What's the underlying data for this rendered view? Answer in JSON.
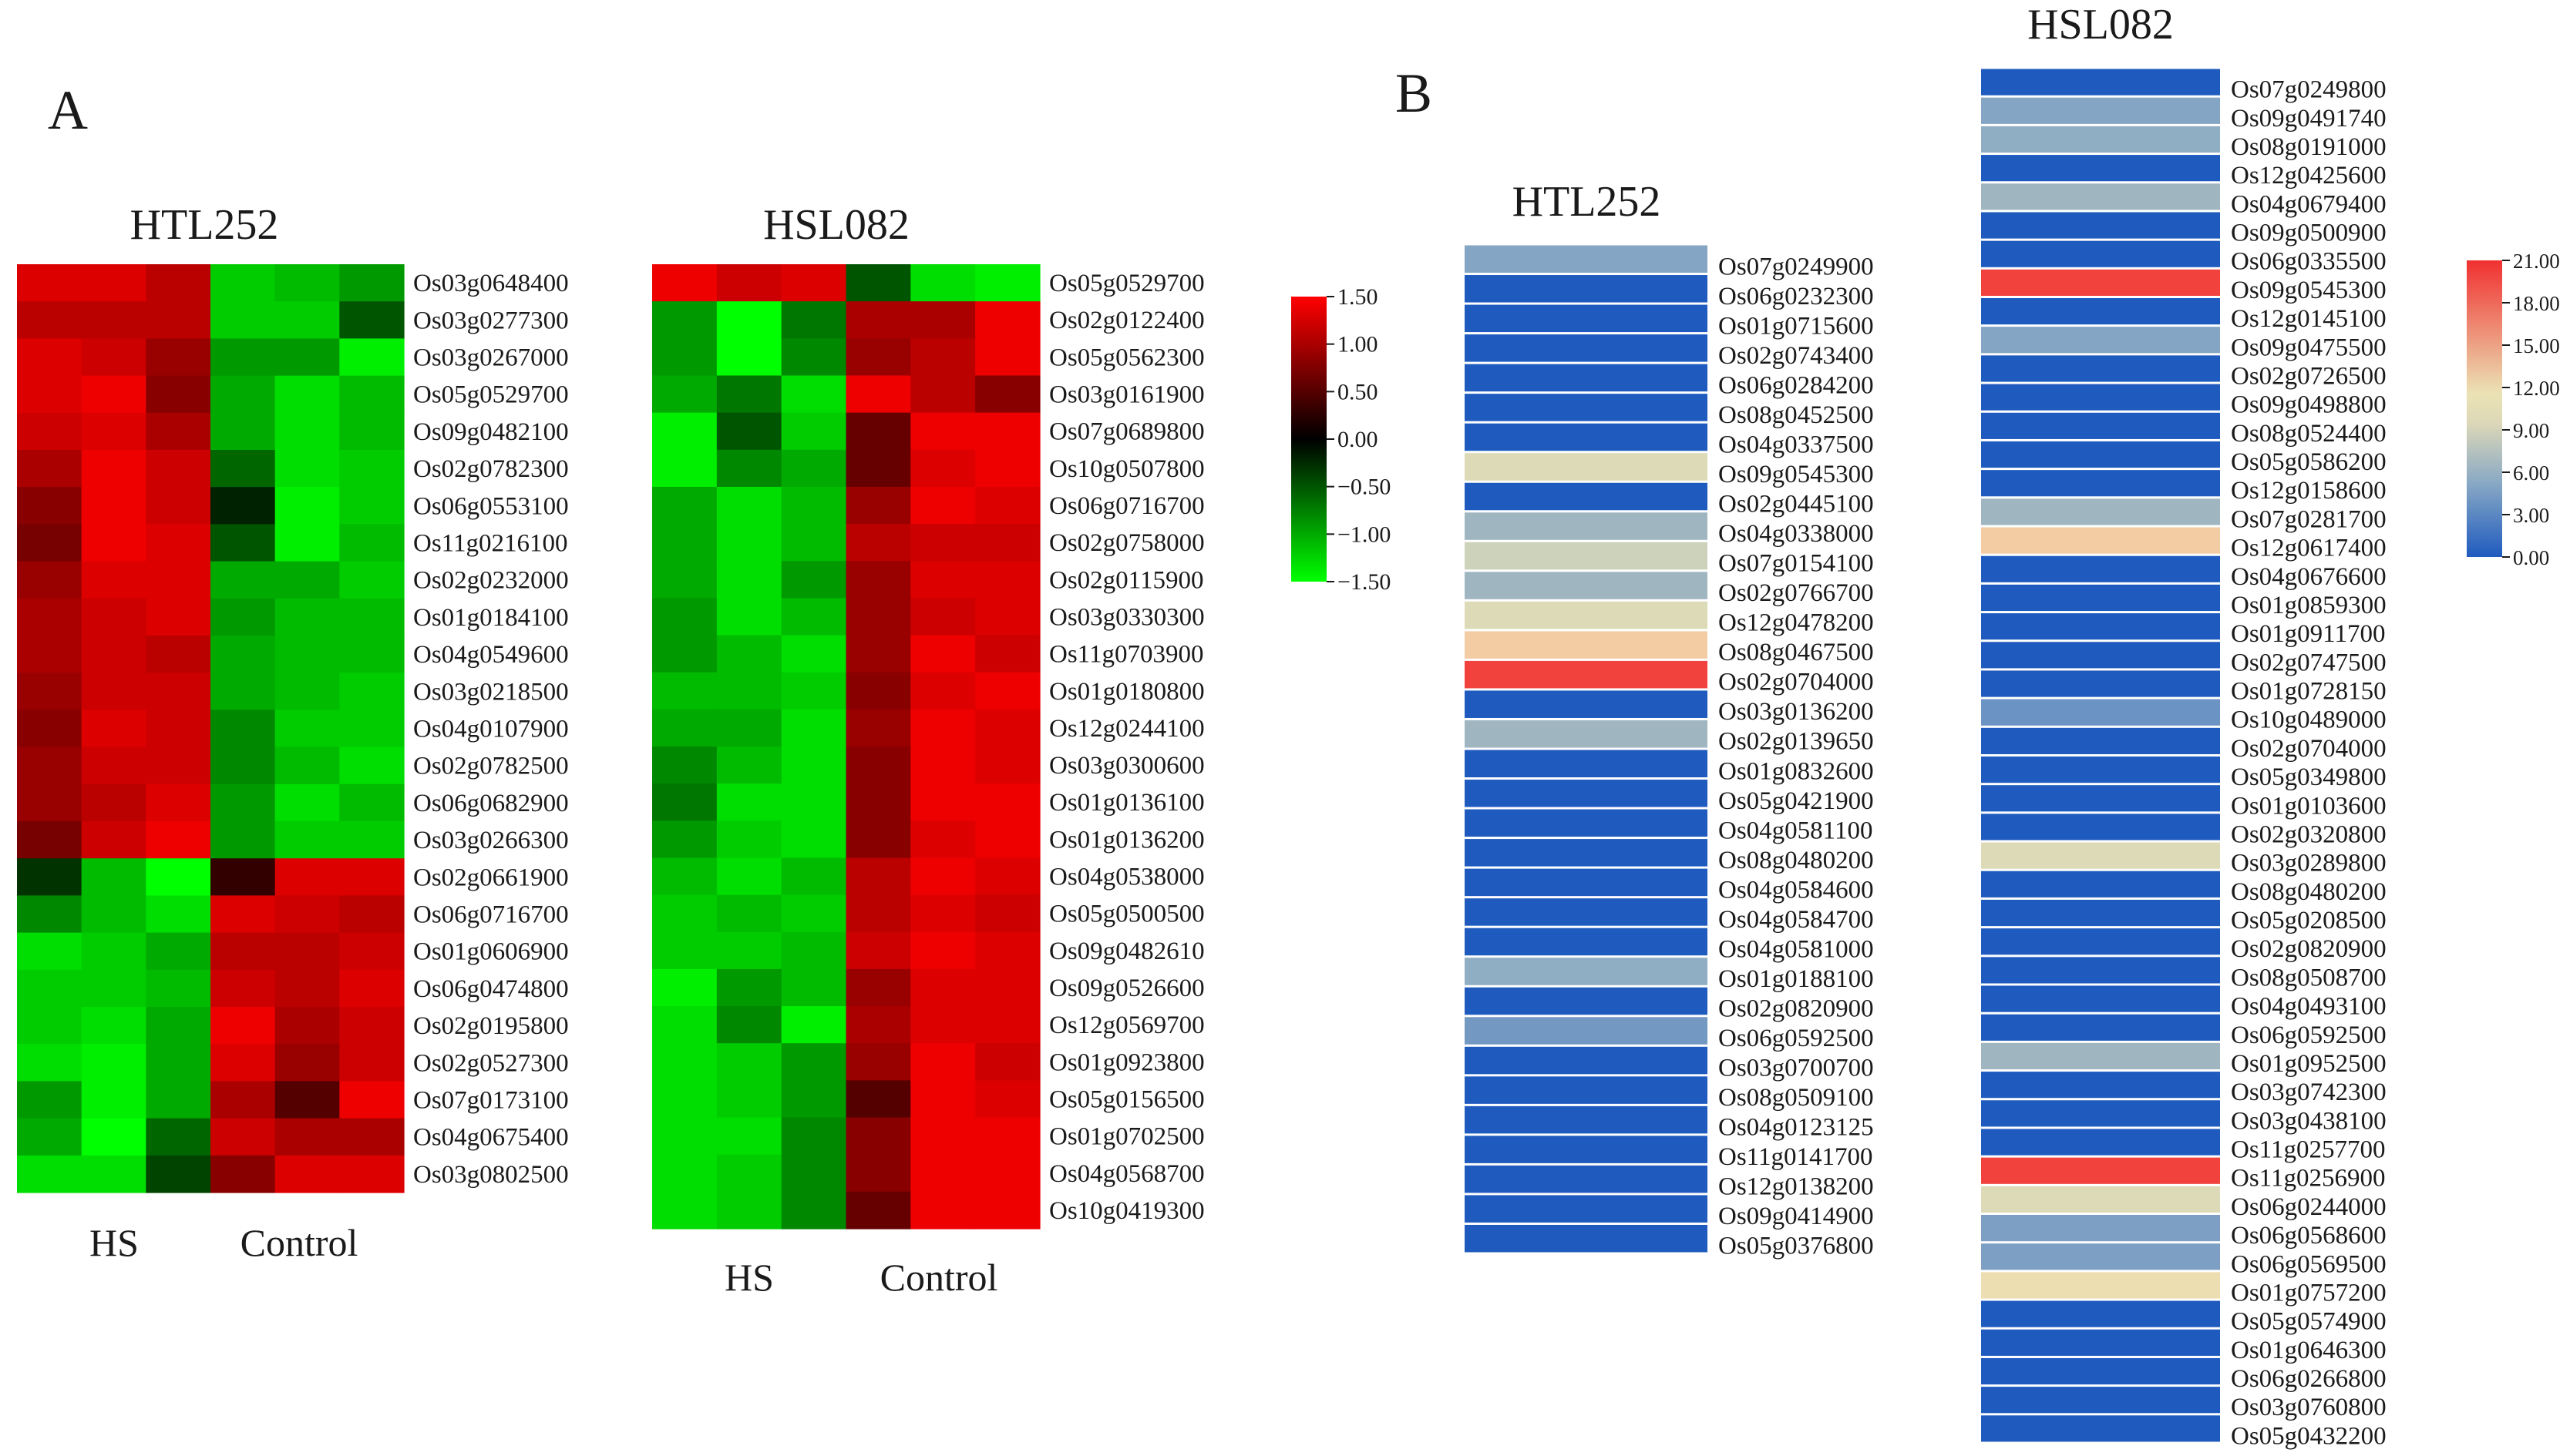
{
  "chart_data": [
    {
      "type": "heatmap",
      "panel": "A",
      "title": "HTL252",
      "rows": [
        "Os03g0648400",
        "Os03g0277300",
        "Os03g0267000",
        "Os05g0529700",
        "Os09g0482100",
        "Os02g0782300",
        "Os06g0553100",
        "Os11g0216100",
        "Os02g0232000",
        "Os01g0184100",
        "Os04g0549600",
        "Os03g0218500",
        "Os04g0107900",
        "Os02g0782500",
        "Os06g0682900",
        "Os03g0266300",
        "Os02g0661900",
        "Os06g0716700",
        "Os01g0606900",
        "Os06g0474800",
        "Os02g0195800",
        "Os02g0527300",
        "Os07g0173100",
        "Os04g0675400",
        "Os03g0802500"
      ],
      "column_groups": [
        "HS",
        "Control"
      ],
      "values": [
        [
          1.3,
          1.3,
          1.1,
          -1.2,
          -1.1,
          -0.9
        ],
        [
          1.1,
          1.1,
          1.1,
          -1.2,
          -1.2,
          -0.5
        ],
        [
          1.3,
          1.2,
          0.9,
          -0.9,
          -0.9,
          -1.4
        ],
        [
          1.3,
          1.4,
          0.8,
          -1.0,
          -1.3,
          -1.1
        ],
        [
          1.2,
          1.3,
          1.0,
          -1.0,
          -1.3,
          -1.1
        ],
        [
          1.0,
          1.4,
          1.2,
          -0.6,
          -1.3,
          -1.2
        ],
        [
          0.8,
          1.4,
          1.2,
          -0.2,
          -1.4,
          -1.2
        ],
        [
          0.7,
          1.4,
          1.3,
          -0.5,
          -1.4,
          -1.1
        ],
        [
          0.9,
          1.3,
          1.3,
          -1.0,
          -1.0,
          -1.2
        ],
        [
          1.0,
          1.2,
          1.3,
          -0.9,
          -1.1,
          -1.1
        ],
        [
          1.0,
          1.2,
          1.1,
          -1.0,
          -1.1,
          -1.1
        ],
        [
          0.9,
          1.2,
          1.2,
          -1.0,
          -1.1,
          -1.2
        ],
        [
          0.8,
          1.3,
          1.2,
          -0.8,
          -1.2,
          -1.2
        ],
        [
          0.9,
          1.2,
          1.2,
          -0.8,
          -1.1,
          -1.3
        ],
        [
          0.9,
          1.1,
          1.3,
          -0.9,
          -1.3,
          -1.1
        ],
        [
          0.7,
          1.2,
          1.4,
          -0.9,
          -1.2,
          -1.2
        ],
        [
          -0.3,
          -1.1,
          -1.5,
          0.3,
          1.3,
          1.3
        ],
        [
          -0.8,
          -1.1,
          -1.3,
          1.3,
          1.2,
          1.1
        ],
        [
          -1.3,
          -1.2,
          -1.0,
          1.1,
          1.1,
          1.2
        ],
        [
          -1.2,
          -1.2,
          -1.1,
          1.2,
          1.1,
          1.3
        ],
        [
          -1.2,
          -1.3,
          -1.0,
          1.4,
          1.0,
          1.2
        ],
        [
          -1.3,
          -1.4,
          -1.0,
          1.3,
          0.9,
          1.2
        ],
        [
          -0.9,
          -1.4,
          -1.0,
          1.0,
          0.5,
          1.4
        ],
        [
          -1.0,
          -1.5,
          -0.6,
          1.2,
          1.0,
          1.0
        ],
        [
          -1.3,
          -1.3,
          -0.4,
          0.8,
          1.3,
          1.3
        ]
      ]
    },
    {
      "type": "heatmap",
      "panel": "A",
      "title": "HSL082",
      "rows": [
        "Os05g0529700",
        "Os02g0122400",
        "Os05g0562300",
        "Os03g0161900",
        "Os07g0689800",
        "Os10g0507800",
        "Os06g0716700",
        "Os02g0758000",
        "Os02g0115900",
        "Os03g0330300",
        "Os11g0703900",
        "Os01g0180800",
        "Os12g0244100",
        "Os03g0300600",
        "Os01g0136100",
        "Os01g0136200",
        "Os04g0538000",
        "Os05g0500500",
        "Os09g0482610",
        "Os09g0526600",
        "Os12g0569700",
        "Os01g0923800",
        "Os05g0156500",
        "Os01g0702500",
        "Os04g0568700",
        "Os10g0419300"
      ],
      "column_groups": [
        "HS",
        "Control"
      ],
      "values": [
        [
          1.4,
          1.2,
          1.3,
          -0.5,
          -1.3,
          -1.4
        ],
        [
          -0.9,
          -1.5,
          -0.7,
          1.0,
          1.0,
          1.4
        ],
        [
          -0.9,
          -1.5,
          -0.8,
          0.9,
          1.1,
          1.4
        ],
        [
          -1.0,
          -0.7,
          -1.3,
          1.4,
          1.1,
          0.8
        ],
        [
          -1.4,
          -0.5,
          -1.2,
          0.6,
          1.4,
          1.4
        ],
        [
          -1.4,
          -0.8,
          -1.0,
          0.6,
          1.3,
          1.4
        ],
        [
          -1.0,
          -1.3,
          -1.1,
          0.9,
          1.4,
          1.3
        ],
        [
          -1.0,
          -1.3,
          -1.1,
          1.1,
          1.2,
          1.2
        ],
        [
          -1.0,
          -1.3,
          -0.9,
          0.9,
          1.3,
          1.3
        ],
        [
          -0.9,
          -1.3,
          -1.1,
          0.9,
          1.2,
          1.3
        ],
        [
          -0.9,
          -1.1,
          -1.3,
          0.9,
          1.4,
          1.2
        ],
        [
          -1.1,
          -1.1,
          -1.2,
          0.8,
          1.3,
          1.4
        ],
        [
          -1.0,
          -1.0,
          -1.3,
          0.9,
          1.4,
          1.3
        ],
        [
          -0.8,
          -1.1,
          -1.3,
          0.8,
          1.4,
          1.3
        ],
        [
          -0.7,
          -1.3,
          -1.3,
          0.8,
          1.4,
          1.4
        ],
        [
          -0.9,
          -1.2,
          -1.3,
          0.8,
          1.3,
          1.4
        ],
        [
          -1.1,
          -1.3,
          -1.1,
          1.1,
          1.4,
          1.3
        ],
        [
          -1.2,
          -1.1,
          -1.2,
          1.1,
          1.3,
          1.2
        ],
        [
          -1.2,
          -1.2,
          -1.1,
          1.2,
          1.4,
          1.3
        ],
        [
          -1.4,
          -0.9,
          -1.1,
          0.9,
          1.3,
          1.3
        ],
        [
          -1.3,
          -0.8,
          -1.4,
          1.0,
          1.3,
          1.3
        ],
        [
          -1.3,
          -1.2,
          -0.9,
          0.9,
          1.4,
          1.2
        ],
        [
          -1.3,
          -1.2,
          -0.9,
          0.5,
          1.4,
          1.3
        ],
        [
          -1.3,
          -1.3,
          -0.8,
          0.8,
          1.4,
          1.4
        ],
        [
          -1.3,
          -1.2,
          -0.8,
          0.8,
          1.4,
          1.4
        ],
        [
          -1.3,
          -1.2,
          -0.8,
          0.6,
          1.4,
          1.4
        ]
      ]
    },
    {
      "type": "heatmap",
      "panel": "A",
      "colorbar_ticks": [
        "1.50",
        "1.00",
        "0.50",
        "0.00",
        "−0.50",
        "−1.00",
        "−1.50"
      ],
      "range": [
        -1.5,
        1.5
      ],
      "colors": {
        "high": "#ff0000",
        "mid": "#000000",
        "low": "#00ff00"
      }
    },
    {
      "type": "heatmap",
      "panel": "B",
      "title": "HTL252",
      "rows": [
        "Os07g0249900",
        "Os06g0232300",
        "Os01g0715600",
        "Os02g0743400",
        "Os06g0284200",
        "Os08g0452500",
        "Os04g0337500",
        "Os09g0545300",
        "Os02g0445100",
        "Os04g0338000",
        "Os07g0154100",
        "Os02g0766700",
        "Os12g0478200",
        "Os08g0467500",
        "Os02g0704000",
        "Os03g0136200",
        "Os02g0139650",
        "Os01g0832600",
        "Os05g0421900",
        "Os04g0581100",
        "Os08g0480200",
        "Os04g0584600",
        "Os04g0584700",
        "Os04g0581000",
        "Os01g0188100",
        "Os02g0820900",
        "Os06g0592500",
        "Os03g0700700",
        "Os08g0509100",
        "Os04g0123125",
        "Os11g0141700",
        "Os12g0138200",
        "Os09g0414900",
        "Os05g0376800"
      ],
      "values": [
        6,
        0,
        0,
        0,
        0,
        0,
        0,
        9,
        0,
        7,
        8.5,
        7,
        9,
        12,
        20,
        0,
        7,
        0,
        0,
        0,
        0,
        0,
        0,
        0,
        6.5,
        0,
        5,
        0,
        0,
        0,
        0,
        0,
        0,
        0
      ]
    },
    {
      "type": "heatmap",
      "panel": "B",
      "title": "HSL082",
      "rows": [
        "Os07g0249800",
        "Os09g0491740",
        "Os08g0191000",
        "Os12g0425600",
        "Os04g0679400",
        "Os09g0500900",
        "Os06g0335500",
        "Os09g0545300",
        "Os12g0145100",
        "Os09g0475500",
        "Os02g0726500",
        "Os09g0498800",
        "Os08g0524400",
        "Os05g0586200",
        "Os12g0158600",
        "Os07g0281700",
        "Os12g0617400",
        "Os04g0676600",
        "Os01g0859300",
        "Os01g0911700",
        "Os02g0747500",
        "Os01g0728150",
        "Os10g0489000",
        "Os02g0704000",
        "Os05g0349800",
        "Os01g0103600",
        "Os02g0320800",
        "Os03g0289800",
        "Os08g0480200",
        "Os05g0208500",
        "Os02g0820900",
        "Os08g0508700",
        "Os04g0493100",
        "Os06g0592500",
        "Os01g0952500",
        "Os03g0742300",
        "Os03g0438100",
        "Os11g0257700",
        "Os11g0256900",
        "Os06g0244000",
        "Os06g0568600",
        "Os06g0569500",
        "Os01g0757200",
        "Os05g0574900",
        "Os01g0646300",
        "Os06g0266800",
        "Os03g0760800",
        "Os05g0432200"
      ],
      "values": [
        0,
        6,
        6.5,
        0,
        7,
        0,
        0,
        20,
        0,
        6,
        0,
        0,
        0,
        0,
        0,
        7,
        12,
        0,
        0,
        0,
        0,
        0,
        4.5,
        0,
        0,
        0,
        0,
        9,
        0,
        0,
        0,
        0,
        0,
        0,
        7,
        0,
        0,
        0,
        20,
        9,
        5.5,
        5.5,
        10,
        0,
        0,
        0,
        0,
        0
      ]
    },
    {
      "type": "heatmap",
      "panel": "B",
      "colorbar_ticks": [
        "21.00",
        "18.00",
        "15.00",
        "12.00",
        "9.00",
        "6.00",
        "3.00",
        "0.00"
      ],
      "range": [
        0,
        21
      ],
      "colors": [
        "#1f5bbf",
        "#89a9c4",
        "#ebe3b5",
        "#f5c6a0",
        "#f03030"
      ]
    }
  ],
  "labels": {
    "panel_a_letter": "A",
    "panel_b_letter": "B",
    "hs": "HS",
    "control": "Control"
  }
}
